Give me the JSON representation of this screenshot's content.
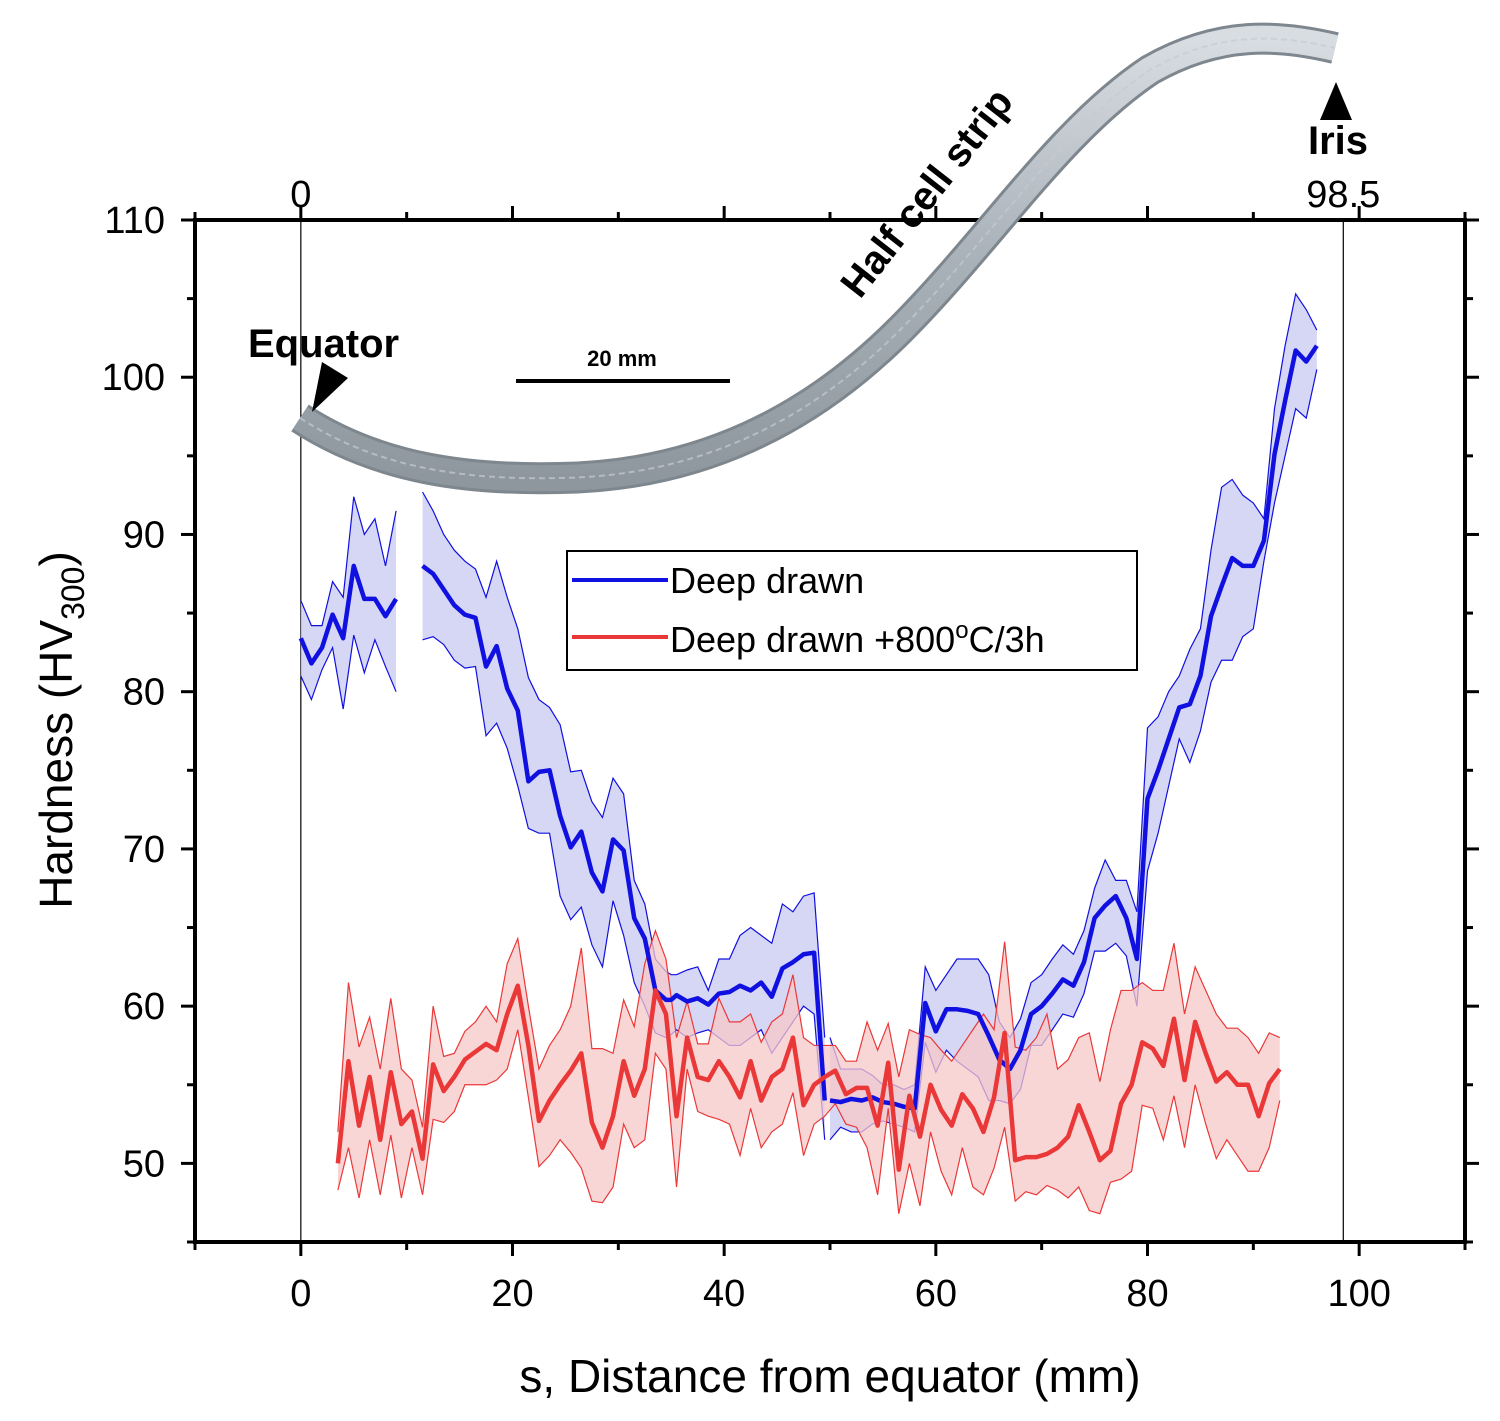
{
  "chart_data": {
    "type": "line",
    "xlabel": "s, Distance from equator (mm)",
    "ylabel_main": "Hardness (HV",
    "ylabel_sub": "300",
    "ylabel_close": ")",
    "xlim": [
      -10,
      110
    ],
    "ylim": [
      45,
      110
    ],
    "x_ticks": [
      0,
      20,
      40,
      60,
      80,
      100
    ],
    "y_ticks": [
      50,
      60,
      70,
      80,
      90,
      100,
      110
    ],
    "top_axis_labels": [
      {
        "value": 0,
        "label": "0"
      },
      {
        "value": 98.5,
        "label": "98.5"
      }
    ],
    "reference_lines_x": [
      0,
      98.5
    ],
    "legend": {
      "placement": "center",
      "entries": [
        {
          "series": "deep_drawn",
          "text": "Deep drawn"
        },
        {
          "series": "annealed",
          "text_pre": "Deep drawn +800",
          "text_sup": "o",
          "text_post": "C/3h"
        }
      ]
    },
    "annotations": {
      "equator": "Equator",
      "iris": "Iris",
      "strip": "Half cell strip",
      "scalebar": "20 mm"
    },
    "series": [
      {
        "id": "deep_drawn",
        "name": "Deep drawn",
        "color": "#1010e0",
        "band_color": "#c8c8f2",
        "segments": [
          {
            "x": [
              0,
              1,
              2,
              3,
              4,
              5,
              6,
              7,
              8,
              9,
              10
            ],
            "y": [
              83.4,
              81.8,
              82.8,
              84.9,
              83.4,
              88.0,
              85.9,
              85.9,
              84.8,
              85.9,
              null
            ],
            "upper": [
              85.8,
              84.2,
              84.2,
              87.0,
              86.0,
              92.4,
              90.0,
              91.0,
              88.0,
              91.5,
              null
            ],
            "lower": [
              81.0,
              79.5,
              81.4,
              82.8,
              78.9,
              83.6,
              81.2,
              83.3,
              81.6,
              80.0,
              null
            ]
          },
          {
            "x": [
              11.5,
              12.5,
              13.5,
              14.5,
              15.5,
              16.5,
              17.5,
              18.5,
              19.5,
              20.5,
              21.5,
              22.5,
              23.5,
              24.5,
              25.5,
              26.5,
              27.5,
              28.5,
              29.5,
              30.5,
              31.5,
              32.5,
              33.5,
              34.5,
              35.0,
              35.5,
              36.5,
              37.5,
              38.5,
              39.5,
              40.5,
              41.5,
              42.5,
              43.5,
              44.5,
              45.5,
              46.5,
              47.5,
              48.5,
              49.5
            ],
            "y": [
              88.0,
              87.5,
              86.5,
              85.5,
              84.9,
              84.7,
              81.6,
              82.9,
              80.2,
              78.8,
              74.3,
              74.9,
              75.0,
              72.1,
              70.1,
              71.1,
              68.5,
              67.3,
              70.6,
              69.9,
              65.6,
              64.3,
              61.0,
              60.4,
              60.4,
              60.7,
              60.3,
              60.5,
              60.1,
              60.8,
              60.9,
              61.3,
              61.0,
              61.5,
              60.6,
              62.4,
              62.8,
              63.3,
              63.4,
              54.0
            ],
            "upper": [
              92.7,
              91.5,
              90.0,
              89.0,
              88.3,
              87.8,
              86.0,
              88.3,
              86.0,
              84.0,
              80.9,
              79.5,
              79.0,
              77.9,
              74.9,
              75.0,
              73.0,
              72.0,
              74.5,
              73.5,
              68.0,
              66.5,
              63.0,
              62.2,
              62.0,
              62.0,
              62.3,
              62.5,
              61.0,
              63.0,
              63.0,
              64.5,
              65.0,
              64.5,
              64.0,
              66.5,
              66.0,
              67.0,
              67.2,
              58.0
            ],
            "lower": [
              83.3,
              83.5,
              83.0,
              82.0,
              81.5,
              81.6,
              77.2,
              78.0,
              76.4,
              74.0,
              71.3,
              71.0,
              71.0,
              67.0,
              65.5,
              66.3,
              63.9,
              62.5,
              66.7,
              64.5,
              61.5,
              60.0,
              58.3,
              58.0,
              58.2,
              58.5,
              58.0,
              58.3,
              58.5,
              58.0,
              57.5,
              57.5,
              58.0,
              58.5,
              57.0,
              58.0,
              59.0,
              60.0,
              59.5,
              51.5
            ]
          },
          {
            "x": [
              50.0,
              51.0,
              52.0,
              53.0,
              54.0,
              55.0,
              56.0,
              57.0,
              58.0,
              59.0,
              60.0,
              61.0,
              62.0,
              63.0,
              64.0,
              65.0,
              66.0,
              67.0,
              68.0,
              69.0,
              70.0,
              71.0,
              72.0,
              73.0,
              74.0,
              75.0,
              76.0,
              77.0,
              78.0,
              79.0,
              80.0,
              81.0,
              82.0,
              83.0,
              84.0,
              85.0,
              86.0,
              87.0,
              88.0,
              89.0,
              90.0,
              91.0,
              92.0,
              93.0,
              94.0,
              95.0,
              96.0,
              97.0,
              98.0
            ],
            "y": [
              54.0,
              53.9,
              54.1,
              54.0,
              54.2,
              53.9,
              53.8,
              53.6,
              53.5,
              60.2,
              58.4,
              59.8,
              59.8,
              59.7,
              59.5,
              58.1,
              56.6,
              56.0,
              57.2,
              59.5,
              60.0,
              60.8,
              61.7,
              61.3,
              62.8,
              65.6,
              66.4,
              67.0,
              65.6,
              63.0,
              73.2,
              75.0,
              77.0,
              79.0,
              79.2,
              81.0,
              84.8,
              86.7,
              88.5,
              88.0,
              88.0,
              89.6,
              95.1,
              98.5,
              101.7,
              101.0,
              102.0,
              null,
              null
            ],
            "upper": [
              58.0,
              56.0,
              56.0,
              56.0,
              55.6,
              55.0,
              55.0,
              54.7,
              55.0,
              62.5,
              61.0,
              62.0,
              63.0,
              63.0,
              63.0,
              62.0,
              59.0,
              58.0,
              59.2,
              61.5,
              62.0,
              63.0,
              63.9,
              63.3,
              64.8,
              67.5,
              69.3,
              68.0,
              68.0,
              66.0,
              77.7,
              78.4,
              80.0,
              81.0,
              82.7,
              84.0,
              89.0,
              93.0,
              93.5,
              92.5,
              92.0,
              91.0,
              98.0,
              102.0,
              105.3,
              104.3,
              103.0,
              null,
              null
            ],
            "lower": [
              51.5,
              52.3,
              52.0,
              52.0,
              52.5,
              52.7,
              52.5,
              52.3,
              52.0,
              57.7,
              55.8,
              57.2,
              56.5,
              56.0,
              55.5,
              54.0,
              54.0,
              53.8,
              54.7,
              57.5,
              57.5,
              58.5,
              59.5,
              59.3,
              60.8,
              63.5,
              63.5,
              64.0,
              63.2,
              60.0,
              68.6,
              71.0,
              74.0,
              77.0,
              75.5,
              77.5,
              80.6,
              82.0,
              82.0,
              83.5,
              84.0,
              88.3,
              92.0,
              95.0,
              98.0,
              97.4,
              100.5,
              null,
              null
            ]
          }
        ]
      },
      {
        "id": "annealed",
        "name": "Deep drawn +800°C/3h",
        "color": "#ea3838",
        "band_color": "#f7c8c8",
        "segments": [
          {
            "x": [
              3.5,
              4.5,
              5.5,
              6.5,
              7.5,
              8.5,
              9.5,
              10.5,
              11.5,
              12.5,
              13.5,
              14.5,
              15.5,
              16.5,
              17.5,
              18.5,
              19.5,
              20.5,
              21.5,
              22.5,
              23.5,
              24.5,
              25.5,
              26.5,
              27.5,
              28.5,
              29.5,
              30.5,
              31.5,
              32.5,
              33.5,
              34.5,
              35.5,
              36.5,
              37.5,
              38.5,
              39.5,
              40.5,
              41.5,
              42.5,
              43.5,
              44.5,
              45.5,
              46.5,
              47.5,
              48.5,
              49.5,
              50.5,
              51.5,
              52.5,
              53.5,
              54.5,
              55.5,
              56.5,
              57.5,
              58.5,
              59.5,
              60.5,
              61.5,
              62.5,
              63.5,
              64.5,
              65.5,
              66.5,
              67.5,
              68.5,
              69.5,
              70.5,
              71.5,
              72.5,
              73.5,
              74.5,
              75.5,
              76.5,
              77.5,
              78.5,
              79.5,
              80.5,
              81.5,
              82.5,
              83.5,
              84.5,
              85.5,
              86.5,
              87.5,
              88.5,
              89.5,
              90.5,
              91.5,
              92.5,
              93.5,
              94.5,
              95.5,
              96.5,
              97.5,
              98.5
            ],
            "y": [
              50.0,
              56.5,
              52.4,
              55.5,
              51.5,
              55.8,
              52.5,
              53.3,
              50.3,
              56.3,
              54.6,
              55.5,
              56.6,
              57.1,
              57.6,
              57.2,
              59.5,
              61.3,
              57.5,
              52.7,
              54.0,
              55.0,
              55.9,
              57.0,
              52.6,
              51.0,
              53.0,
              56.5,
              54.3,
              56.0,
              61.0,
              59.5,
              53.0,
              58.0,
              55.5,
              55.3,
              56.5,
              55.5,
              54.2,
              56.5,
              54.0,
              55.5,
              56.0,
              58.0,
              53.7,
              55.0,
              55.5,
              55.9,
              54.4,
              54.8,
              54.8,
              52.4,
              56.4,
              49.6,
              54.3,
              51.7,
              55.0,
              53.4,
              52.4,
              54.4,
              53.5,
              52.0,
              54.2,
              58.3,
              50.2,
              50.4,
              50.4,
              50.6,
              51.0,
              51.7,
              53.7,
              52.0,
              50.2,
              50.8,
              53.8,
              55.0,
              57.7,
              57.3,
              56.2,
              59.2,
              55.3,
              59.0,
              57.0,
              55.2,
              55.8,
              55.0,
              55.0,
              53.0,
              55.1,
              56.0,
              null,
              null,
              null,
              null,
              null,
              null
            ],
            "upper": [
              52.0,
              61.5,
              57.4,
              59.3,
              56.0,
              60.5,
              56.0,
              55.3,
              52.3,
              60.0,
              56.8,
              57.0,
              58.4,
              59.0,
              60.0,
              59.0,
              62.7,
              64.3,
              60.0,
              56.0,
              57.5,
              58.5,
              60.0,
              63.7,
              57.3,
              57.3,
              57.0,
              60.4,
              58.7,
              62.7,
              64.8,
              63.0,
              58.0,
              60.3,
              57.6,
              57.6,
              60.5,
              59.0,
              59.0,
              59.5,
              57.7,
              59.0,
              59.5,
              62.0,
              58.0,
              57.5,
              57.5,
              57.5,
              56.5,
              56.5,
              59.0,
              57.2,
              58.9,
              55.5,
              58.5,
              58.2,
              58.0,
              57.2,
              56.5,
              57.5,
              58.5,
              59.5,
              58.5,
              64.1,
              57.4,
              57.2,
              58.0,
              59.5,
              56.0,
              56.6,
              58.0,
              58.3,
              55.2,
              58.5,
              61.0,
              61.0,
              61.5,
              61.0,
              61.0,
              64.0,
              59.5,
              62.5,
              61.0,
              59.5,
              58.6,
              58.6,
              58.0,
              57.0,
              58.3,
              58.0,
              null,
              null,
              null,
              null,
              null,
              null
            ],
            "lower": [
              48.3,
              51.0,
              47.8,
              51.5,
              48.0,
              51.8,
              47.8,
              51.0,
              48.0,
              52.8,
              52.6,
              53.3,
              55.0,
              55.0,
              55.0,
              55.3,
              56.0,
              58.5,
              54.2,
              49.8,
              50.5,
              51.5,
              50.7,
              49.7,
              47.6,
              47.5,
              48.5,
              52.5,
              51.0,
              51.5,
              57.0,
              56.0,
              48.5,
              56.0,
              53.3,
              53.0,
              52.8,
              52.5,
              50.5,
              53.5,
              51.0,
              52.0,
              52.5,
              54.5,
              50.5,
              52.5,
              53.0,
              53.8,
              52.5,
              52.3,
              51.0,
              48.0,
              53.5,
              46.8,
              50.0,
              47.3,
              52.0,
              49.5,
              48.0,
              51.0,
              48.5,
              48.0,
              49.7,
              52.3,
              47.6,
              48.2,
              48.0,
              48.6,
              48.3,
              47.8,
              48.5,
              47.0,
              46.8,
              48.8,
              49.0,
              49.5,
              53.7,
              53.5,
              51.5,
              54.3,
              51.0,
              55.0,
              52.5,
              50.3,
              51.5,
              50.5,
              49.5,
              49.5,
              51.0,
              54.0,
              null,
              null,
              null,
              null,
              null,
              null
            ]
          }
        ]
      }
    ]
  }
}
